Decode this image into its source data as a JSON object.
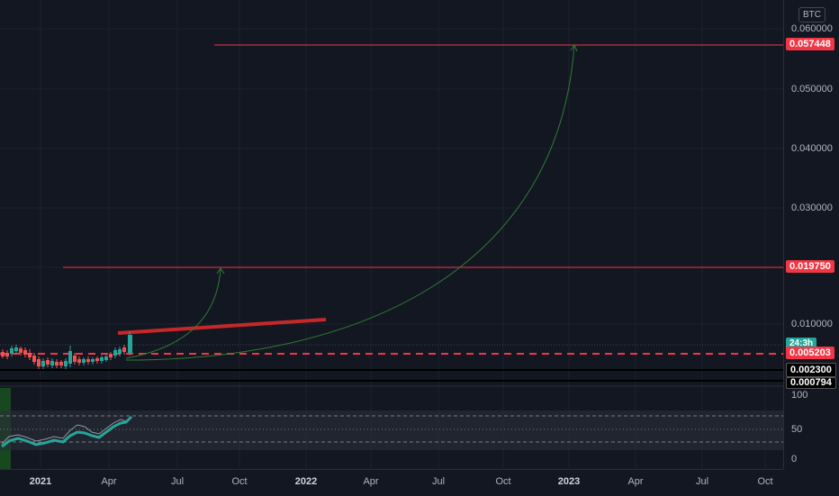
{
  "currency": "BTC",
  "price_axis": {
    "ticks": [
      "0.060000",
      "0.050000",
      "0.040000",
      "0.030000",
      "0.010000",
      "0.002300",
      "0.000794"
    ],
    "labels": {
      "target_high": "0.057448",
      "target_mid": "0.019750",
      "current": "0.005203",
      "countdown": "24:3h"
    }
  },
  "rsi_axis": {
    "ticks": [
      "100",
      "50",
      "0"
    ]
  },
  "time_axis": {
    "ticks": [
      {
        "label": "2021",
        "bold": true
      },
      {
        "label": "Apr",
        "bold": false
      },
      {
        "label": "Jul",
        "bold": false
      },
      {
        "label": "Oct",
        "bold": false
      },
      {
        "label": "2022",
        "bold": true
      },
      {
        "label": "Apr",
        "bold": false
      },
      {
        "label": "Jul",
        "bold": false
      },
      {
        "label": "Oct",
        "bold": false
      },
      {
        "label": "2023",
        "bold": true
      },
      {
        "label": "Apr",
        "bold": false
      },
      {
        "label": "Jul",
        "bold": false
      },
      {
        "label": "Oct",
        "bold": false
      }
    ]
  },
  "colors": {
    "background": "#131722",
    "up": "#26a69a",
    "down": "#ef5350",
    "target_line": "#f23645",
    "curve": "#2e7d32",
    "trendline": "#c62828",
    "rsi": "#26a69a"
  }
}
